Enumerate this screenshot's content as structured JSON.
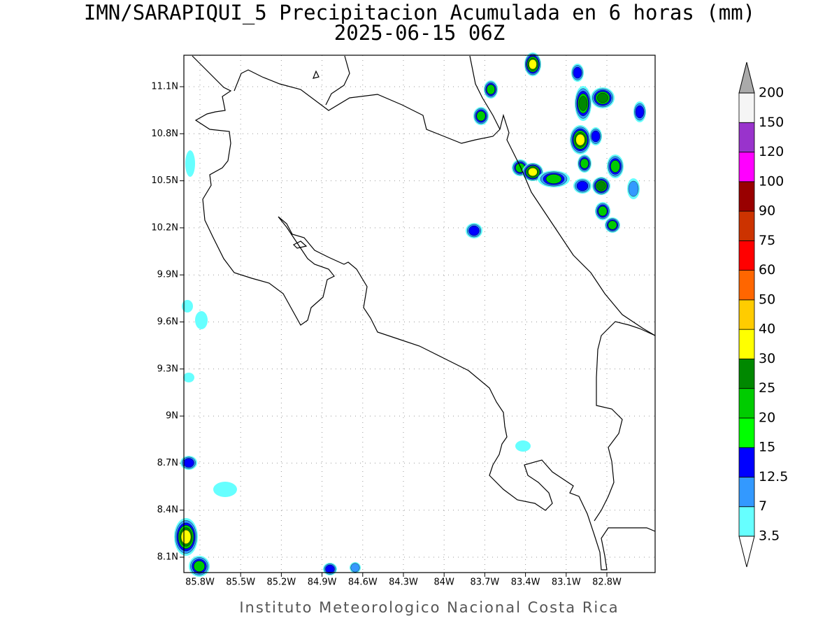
{
  "header": {
    "title": "IMN/SARAPIQUI_5 Precipitacion Acumulada en 6 horas (mm)",
    "subtitle": "2025-06-15 06Z"
  },
  "map": {
    "lon_ticks": [
      "85.8W",
      "85.5W",
      "85.2W",
      "84.9W",
      "84.6W",
      "84.3W",
      "84W",
      "83.7W",
      "83.4W",
      "83.1W",
      "82.8W"
    ],
    "lat_ticks": [
      "11.1N",
      "10.8N",
      "10.5N",
      "10.2N",
      "9.9N",
      "9.6N",
      "9.3N",
      "9N",
      "8.7N",
      "8.4N",
      "8.1N"
    ],
    "grid": true
  },
  "colorbar": {
    "levels": [
      3.5,
      7,
      12.5,
      15,
      20,
      25,
      30,
      40,
      50,
      60,
      75,
      90,
      100,
      120,
      150,
      200
    ],
    "colors": [
      "#66ffff",
      "#3399ff",
      "#0000ff",
      "#00ff00",
      "#00cc00",
      "#008800",
      "#ffff00",
      "#ffcc00",
      "#ff6600",
      "#ff0000",
      "#cc3300",
      "#990000",
      "#ff00ff",
      "#9933cc",
      "#f5f5f5"
    ],
    "under_color": "#ffffff",
    "over_color": "#aaaaaa"
  },
  "footer": {
    "credit": "Instituto Meteorologico Nacional Costa Rica"
  }
}
